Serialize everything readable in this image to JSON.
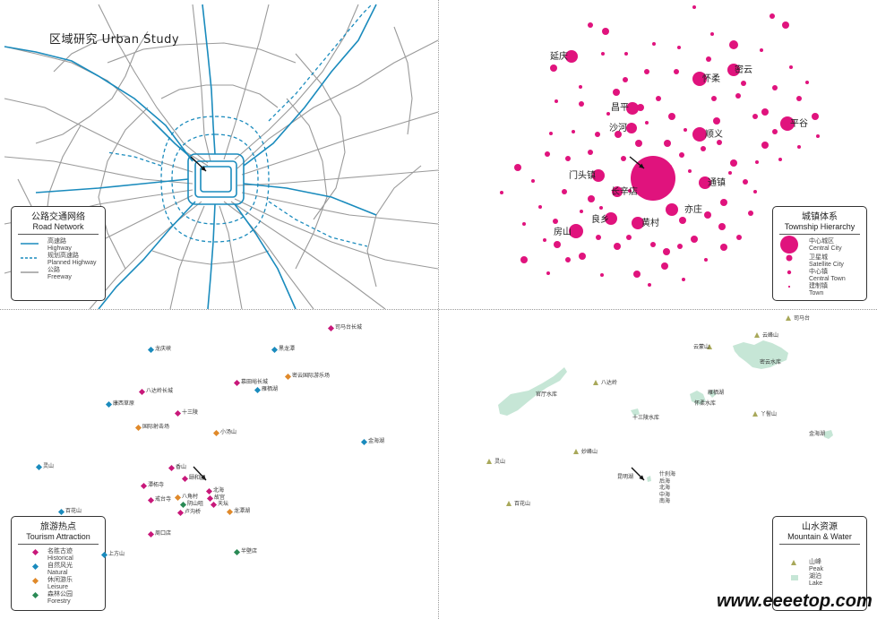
{
  "title": "区域研究  Urban Study",
  "colors": {
    "road": "#9a9a9a",
    "highway": "#1a8bbd",
    "city": "#e0137d",
    "historical": "#c8187a",
    "natural": "#1a8bbd",
    "leisure": "#e0892a",
    "forestry": "#2a8a55",
    "lake": "#c6e6d6",
    "peak": "#a8a85a"
  },
  "road_panel": {
    "legend_title_cn": "公路交通网络",
    "legend_title_en": "Road Network",
    "items": [
      {
        "cn": "高速路",
        "en": "Highway",
        "style": "solid-blue"
      },
      {
        "cn": "规划高速路",
        "en": "Planned Highway",
        "style": "dashed-blue"
      },
      {
        "cn": "公路",
        "en": "Freeway",
        "style": "solid-gray"
      }
    ]
  },
  "township_panel": {
    "legend_title_cn": "城镇体系",
    "legend_title_en": "Township Hierarchy",
    "items": [
      {
        "cn": "中心城区",
        "en": "Central City",
        "size": "large"
      },
      {
        "cn": "卫星城",
        "en": "Satellite City",
        "size": "medium"
      },
      {
        "cn": "中心镇",
        "en": "Central Town",
        "size": "small"
      },
      {
        "cn": "建制镇",
        "en": "Town",
        "size": "tiny"
      }
    ],
    "labels": [
      "延庆",
      "密云",
      "怀柔",
      "昌平",
      "平谷",
      "沙河",
      "顺义",
      "门头镇",
      "通镇",
      "长辛店",
      "亦庄",
      "良乡",
      "黄村",
      "房山"
    ]
  },
  "tourism_panel": {
    "legend_title_cn": "旅游热点",
    "legend_title_en": "Tourism Attraction",
    "items": [
      {
        "cn": "名胜古迹",
        "en": "Historical",
        "category": "historical"
      },
      {
        "cn": "自然风光",
        "en": "Natural",
        "category": "natural"
      },
      {
        "cn": "休闲游乐",
        "en": "Leisure",
        "category": "leisure"
      },
      {
        "cn": "森林公园",
        "en": "Forestry",
        "category": "forestry"
      }
    ],
    "points": [
      {
        "label": "司马台长城",
        "category": "historical"
      },
      {
        "label": "龙庆峡",
        "category": "natural"
      },
      {
        "label": "黑龙潭",
        "category": "natural"
      },
      {
        "label": "密云国际游乐场",
        "category": "leisure"
      },
      {
        "label": "慕田峪长城",
        "category": "historical"
      },
      {
        "label": "雁栖湖",
        "category": "natural"
      },
      {
        "label": "八达岭长城",
        "category": "historical"
      },
      {
        "label": "康西草原",
        "category": "natural"
      },
      {
        "label": "十三陵",
        "category": "historical"
      },
      {
        "label": "国际射击场",
        "category": "leisure"
      },
      {
        "label": "小汤山",
        "category": "leisure"
      },
      {
        "label": "金海湖",
        "category": "natural"
      },
      {
        "label": "灵山",
        "category": "natural"
      },
      {
        "label": "香山",
        "category": "historical"
      },
      {
        "label": "颐和园",
        "category": "historical"
      },
      {
        "label": "潭柘寺",
        "category": "historical"
      },
      {
        "label": "北海",
        "category": "historical"
      },
      {
        "label": "故宫",
        "category": "historical"
      },
      {
        "label": "戒台寺",
        "category": "historical"
      },
      {
        "label": "八角村",
        "category": "leisure"
      },
      {
        "label": "天坛",
        "category": "historical"
      },
      {
        "label": "百花山",
        "category": "natural"
      },
      {
        "label": "阴山咀",
        "category": "forestry"
      },
      {
        "label": "龙潭湖",
        "category": "leisure"
      },
      {
        "label": "卢沟桥",
        "category": "historical"
      },
      {
        "label": "周口店",
        "category": "historical"
      },
      {
        "label": "上方山",
        "category": "natural"
      },
      {
        "label": "半壁店",
        "category": "forestry"
      }
    ]
  },
  "water_panel": {
    "legend_title_cn": "山水资源",
    "legend_title_en": "Mountain & Water",
    "items": [
      {
        "cn": "山峰",
        "en": "Peak",
        "type": "peak"
      },
      {
        "cn": "湖泊",
        "en": "Lake",
        "type": "lake"
      }
    ],
    "peaks": [
      "司马台",
      "云峰山",
      "云蒙山",
      "八达岭",
      "丫髻山",
      "妙峰山",
      "灵山",
      "百花山"
    ],
    "lakes": [
      "密云水库",
      "官厅水库",
      "雁栖湖",
      "怀柔水库",
      "十三陵水库",
      "金海湖",
      "昆明湖"
    ],
    "lake_list": [
      "什刹海",
      "后海",
      "北海",
      "中海",
      "南海"
    ]
  },
  "watermark": "www.eeeetop.com"
}
